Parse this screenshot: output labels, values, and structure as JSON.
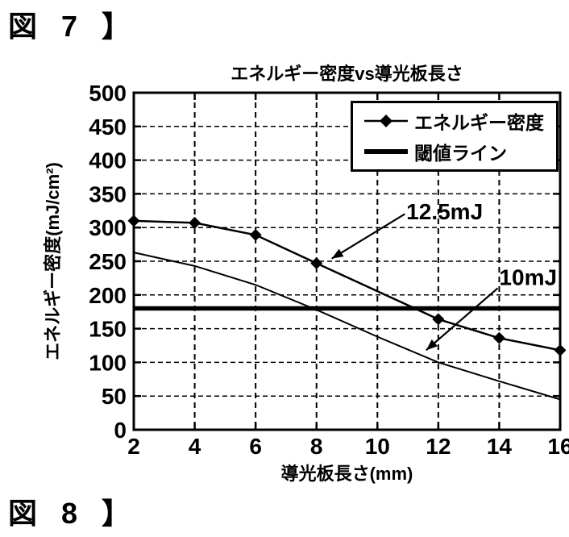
{
  "labels": {
    "fig7": "図 7 】",
    "fig8": "図 8 】"
  },
  "colors": {
    "foreground": "#000000",
    "background": "#ffffff"
  },
  "chart_data": {
    "type": "line",
    "title": "エネルギー密度vs導光板長さ",
    "xlabel": "導光板長さ(mm)",
    "ylabel": "エネルギー密度(mJ/cm²)",
    "xlim": [
      2,
      16
    ],
    "ylim": [
      0,
      500
    ],
    "x_ticks": [
      2,
      4,
      6,
      8,
      10,
      12,
      14,
      16
    ],
    "y_ticks": [
      0,
      50,
      100,
      150,
      200,
      250,
      300,
      350,
      400,
      450,
      500
    ],
    "grid": "dashed",
    "legend_position": "top-right",
    "legend_entries": [
      "エネルギー密度",
      "閾値ライン"
    ],
    "series": [
      {
        "name": "エネルギー密度",
        "annotation_label": "12.5mJ",
        "marker": "diamond",
        "x": [
          2,
          4,
          6,
          8,
          12,
          14,
          16
        ],
        "y": [
          310,
          307,
          289,
          247,
          164,
          136,
          118
        ]
      },
      {
        "name": "10mJ",
        "annotation_label": "10mJ",
        "marker": "none",
        "x": [
          2,
          4,
          6,
          8,
          10,
          12,
          14,
          16
        ],
        "y": [
          263,
          243,
          215,
          178,
          138,
          100,
          72,
          45
        ]
      }
    ],
    "threshold": {
      "name": "閾値ライン",
      "value": 180
    },
    "annotations": [
      {
        "text": "12.5mJ",
        "text_x": 10.95,
        "text_y": 312,
        "arrow_from_x": 10.9,
        "arrow_from_y": 320,
        "arrow_to_x": 8.5,
        "arrow_to_y": 254
      },
      {
        "text": "10mJ",
        "text_x": 14.0,
        "text_y": 215,
        "arrow_from_x": 13.95,
        "arrow_from_y": 210,
        "arrow_to_x": 11.6,
        "arrow_to_y": 118
      }
    ]
  }
}
